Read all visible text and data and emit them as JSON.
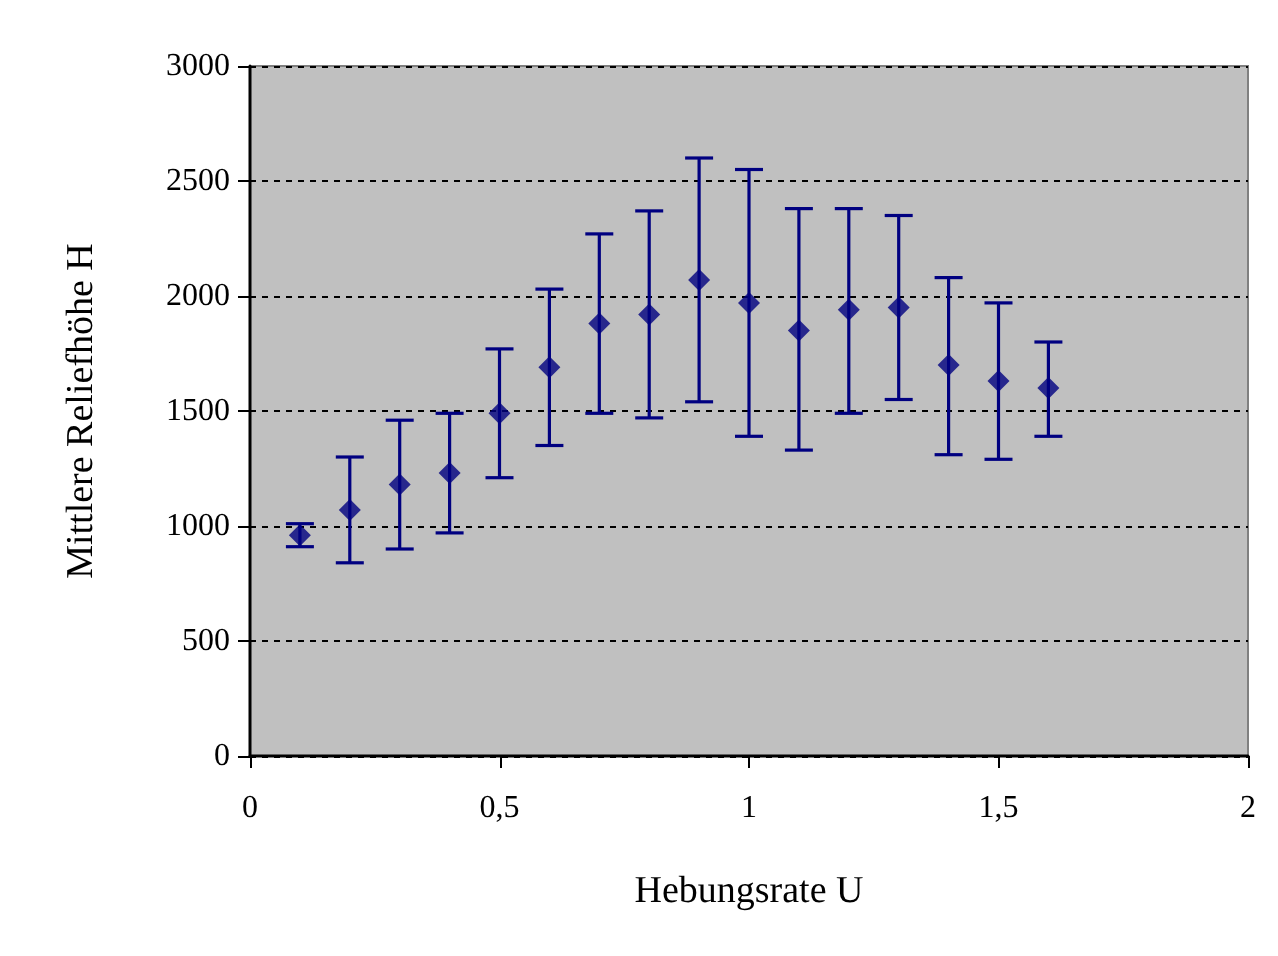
{
  "chart_data": {
    "type": "scatter",
    "xlabel": "Hebungsrate U",
    "ylabel": "Mittlere Reliefhöhe H",
    "x": [
      0.1,
      0.2,
      0.3,
      0.4,
      0.5,
      0.6,
      0.7,
      0.8,
      0.9,
      1.0,
      1.1,
      1.2,
      1.3,
      1.4,
      1.5,
      1.6
    ],
    "series": [
      {
        "color": "#000080",
        "values": [
          960,
          1070,
          1180,
          1230,
          1490,
          1690,
          1880,
          1920,
          2070,
          1970,
          1850,
          1940,
          1950,
          1700,
          1630,
          1600
        ],
        "errors": [
          [
            910,
            1010
          ],
          [
            840,
            1300
          ],
          [
            900,
            1460
          ],
          [
            970,
            1490
          ],
          [
            1210,
            1770
          ],
          [
            1350,
            2030
          ],
          [
            1490,
            2270
          ],
          [
            1470,
            2370
          ],
          [
            1540,
            2600
          ],
          [
            1390,
            2550
          ],
          [
            1330,
            2380
          ],
          [
            1490,
            2380
          ],
          [
            1550,
            2350
          ],
          [
            1310,
            2080
          ],
          [
            1290,
            1970
          ],
          [
            1390,
            1800
          ]
        ]
      }
    ],
    "xlim": [
      0,
      2
    ],
    "xticks": [
      0,
      {
        "value": 0.5,
        "label": "0,5"
      },
      1,
      {
        "value": 1.5,
        "label": "1,5"
      },
      2
    ],
    "ylim": [
      0,
      3000
    ],
    "yticks": [
      0,
      500,
      1000,
      1500,
      2000,
      2500,
      3000
    ],
    "grid": "y",
    "marker": "diamond",
    "legend": false
  }
}
